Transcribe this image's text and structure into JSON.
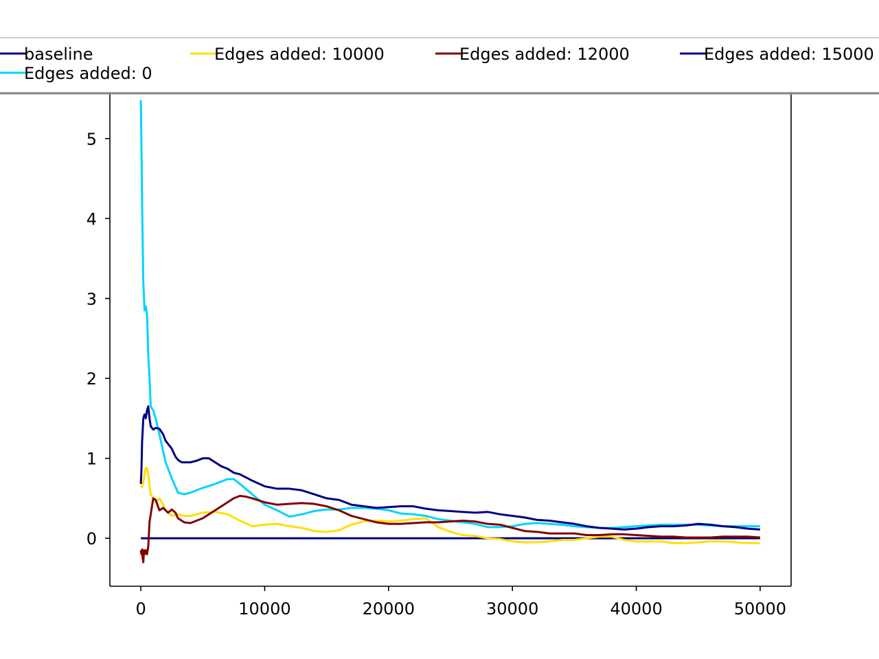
{
  "chart_data": {
    "type": "line",
    "title": "",
    "xlabel": "",
    "ylabel": "",
    "xlim": [
      -2500,
      52500
    ],
    "ylim": [
      -0.6,
      5.6
    ],
    "xticks": [
      0,
      10000,
      20000,
      30000,
      40000,
      50000
    ],
    "xtick_labels": [
      "0",
      "10000",
      "20000",
      "30000",
      "40000",
      "50000"
    ],
    "yticks": [
      0,
      1,
      2,
      3,
      4,
      5
    ],
    "ytick_labels": [
      "0",
      "1",
      "2",
      "3",
      "4",
      "5"
    ],
    "grid": false,
    "legend_position": "top, above plot, 4 columns",
    "series": [
      {
        "name": "baseline",
        "color": "#000080",
        "x": [
          0,
          50000
        ],
        "y": [
          0,
          0
        ]
      },
      {
        "name": "Edges added: 0",
        "color": "#00d4ff",
        "x": [
          0,
          50,
          100,
          200,
          300,
          400,
          500,
          600,
          700,
          800,
          1000,
          1200,
          1500,
          2000,
          2500,
          3000,
          3500,
          4000,
          5000,
          6000,
          7000,
          7500,
          8000,
          9000,
          10000,
          11000,
          12000,
          13000,
          14000,
          15000,
          16000,
          17000,
          18000,
          19000,
          20000,
          21000,
          22000,
          23000,
          24000,
          25000,
          26000,
          27000,
          28000,
          29000,
          30000,
          31000,
          32000,
          33000,
          34000,
          35000,
          36000,
          37000,
          38000,
          39000,
          40000,
          41000,
          42000,
          43000,
          44000,
          45000,
          46000,
          47000,
          48000,
          49000,
          50000
        ],
        "y": [
          5.48,
          4.9,
          4.2,
          3.2,
          2.85,
          2.9,
          2.8,
          2.3,
          2.0,
          1.65,
          1.6,
          1.5,
          1.3,
          0.95,
          0.75,
          0.57,
          0.55,
          0.57,
          0.63,
          0.68,
          0.74,
          0.74,
          0.68,
          0.55,
          0.42,
          0.35,
          0.27,
          0.3,
          0.34,
          0.36,
          0.36,
          0.38,
          0.38,
          0.37,
          0.35,
          0.31,
          0.3,
          0.28,
          0.24,
          0.22,
          0.2,
          0.18,
          0.14,
          0.14,
          0.15,
          0.18,
          0.19,
          0.18,
          0.17,
          0.15,
          0.14,
          0.13,
          0.13,
          0.14,
          0.15,
          0.16,
          0.17,
          0.17,
          0.17,
          0.17,
          0.16,
          0.15,
          0.15,
          0.15,
          0.15
        ]
      },
      {
        "name": "Edges added: 10000",
        "color": "#ffe000",
        "x": [
          0,
          100,
          200,
          300,
          400,
          500,
          600,
          700,
          800,
          1000,
          1200,
          1500,
          1800,
          2000,
          2500,
          3000,
          3500,
          4000,
          5000,
          6000,
          7000,
          8000,
          9000,
          10000,
          11000,
          12000,
          13000,
          14000,
          15000,
          16000,
          17000,
          18000,
          19000,
          20000,
          21000,
          22000,
          23000,
          24000,
          25000,
          26000,
          27000,
          28000,
          29000,
          30000,
          31000,
          32000,
          33000,
          34000,
          35000,
          36000,
          37000,
          38000,
          39000,
          40000,
          41000,
          42000,
          43000,
          44000,
          45000,
          46000,
          47000,
          48000,
          49000,
          50000
        ],
        "y": [
          0.63,
          0.65,
          0.7,
          0.8,
          0.88,
          0.88,
          0.8,
          0.65,
          0.55,
          0.5,
          0.45,
          0.5,
          0.42,
          0.35,
          0.28,
          0.3,
          0.28,
          0.28,
          0.32,
          0.33,
          0.3,
          0.22,
          0.15,
          0.17,
          0.18,
          0.15,
          0.13,
          0.09,
          0.08,
          0.1,
          0.17,
          0.21,
          0.22,
          0.21,
          0.22,
          0.24,
          0.25,
          0.14,
          0.08,
          0.04,
          0.03,
          0.0,
          -0.01,
          -0.04,
          -0.05,
          -0.05,
          -0.04,
          -0.02,
          -0.02,
          0.0,
          0.02,
          0.02,
          -0.02,
          -0.04,
          -0.04,
          -0.04,
          -0.06,
          -0.06,
          -0.05,
          -0.04,
          -0.04,
          -0.05,
          -0.06,
          -0.06
        ]
      },
      {
        "name": "Edges added: 12000",
        "color": "#800000",
        "x": [
          0,
          50,
          100,
          150,
          200,
          250,
          300,
          400,
          500,
          600,
          700,
          800,
          900,
          1000,
          1200,
          1500,
          1800,
          2000,
          2200,
          2500,
          2800,
          3000,
          3500,
          4000,
          4500,
          5000,
          5500,
          6000,
          7000,
          7500,
          8000,
          8500,
          9000,
          10000,
          11000,
          12000,
          13000,
          14000,
          15000,
          16000,
          17000,
          18000,
          19000,
          20000,
          21000,
          22000,
          23000,
          24000,
          25000,
          26000,
          27000,
          28000,
          29000,
          30000,
          31000,
          32000,
          33000,
          34000,
          35000,
          36000,
          37000,
          38000,
          39000,
          40000,
          41000,
          42000,
          43000,
          44000,
          45000,
          46000,
          47000,
          48000,
          49000,
          50000
        ],
        "y": [
          -0.15,
          -0.2,
          -0.14,
          -0.25,
          -0.3,
          -0.15,
          -0.2,
          -0.15,
          -0.2,
          -0.1,
          0.2,
          0.3,
          0.4,
          0.5,
          0.48,
          0.35,
          0.38,
          0.35,
          0.32,
          0.36,
          0.32,
          0.25,
          0.2,
          0.19,
          0.22,
          0.25,
          0.3,
          0.35,
          0.45,
          0.5,
          0.53,
          0.52,
          0.5,
          0.45,
          0.42,
          0.43,
          0.44,
          0.43,
          0.4,
          0.35,
          0.28,
          0.24,
          0.2,
          0.18,
          0.18,
          0.19,
          0.2,
          0.2,
          0.21,
          0.22,
          0.21,
          0.18,
          0.17,
          0.13,
          0.09,
          0.08,
          0.06,
          0.06,
          0.06,
          0.04,
          0.04,
          0.05,
          0.05,
          0.04,
          0.03,
          0.02,
          0.02,
          0.01,
          0.01,
          0.01,
          0.02,
          0.02,
          0.02,
          0.01
        ]
      },
      {
        "name": "Edges added: 15000",
        "color": "#000080",
        "x": [
          0,
          50,
          100,
          200,
          300,
          400,
          500,
          600,
          700,
          800,
          900,
          1000,
          1200,
          1500,
          1800,
          2000,
          2200,
          2500,
          2800,
          3000,
          3300,
          3600,
          4000,
          4500,
          5000,
          5500,
          6000,
          6500,
          7000,
          7500,
          8000,
          9000,
          10000,
          11000,
          12000,
          13000,
          14000,
          15000,
          16000,
          17000,
          18000,
          19000,
          20000,
          21000,
          22000,
          23000,
          24000,
          25000,
          26000,
          27000,
          28000,
          29000,
          30000,
          31000,
          32000,
          33000,
          34000,
          35000,
          36000,
          37000,
          38000,
          39000,
          40000,
          41000,
          42000,
          43000,
          44000,
          45000,
          46000,
          47000,
          48000,
          49000,
          50000
        ],
        "y": [
          0.68,
          0.85,
          1.2,
          1.5,
          1.55,
          1.5,
          1.6,
          1.65,
          1.5,
          1.4,
          1.38,
          1.36,
          1.38,
          1.37,
          1.3,
          1.22,
          1.18,
          1.12,
          1.02,
          0.98,
          0.95,
          0.95,
          0.95,
          0.97,
          1.0,
          1.0,
          0.95,
          0.9,
          0.87,
          0.82,
          0.8,
          0.72,
          0.65,
          0.62,
          0.62,
          0.6,
          0.55,
          0.5,
          0.48,
          0.42,
          0.4,
          0.38,
          0.39,
          0.4,
          0.4,
          0.37,
          0.35,
          0.34,
          0.33,
          0.32,
          0.33,
          0.3,
          0.28,
          0.26,
          0.23,
          0.22,
          0.2,
          0.18,
          0.15,
          0.13,
          0.12,
          0.11,
          0.12,
          0.14,
          0.15,
          0.15,
          0.16,
          0.18,
          0.17,
          0.15,
          0.14,
          0.12,
          0.11
        ]
      }
    ]
  }
}
